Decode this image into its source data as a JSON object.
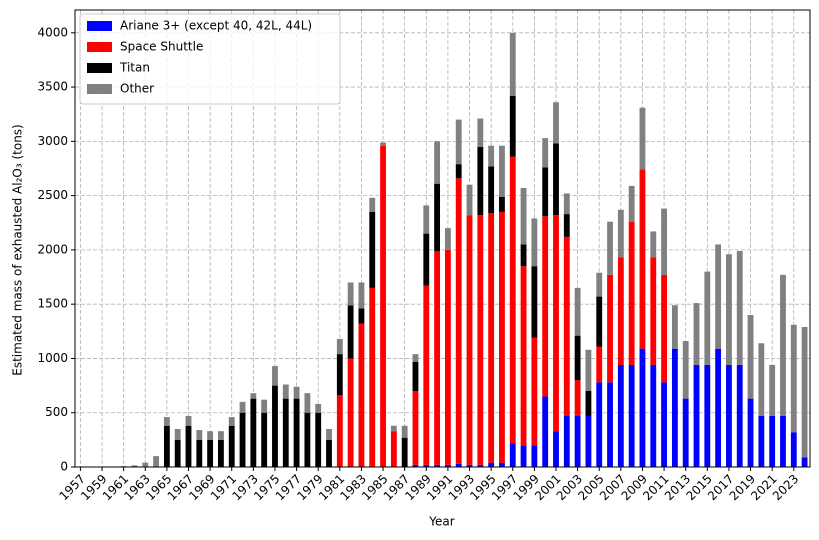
{
  "chart_data": {
    "type": "stacked_bar",
    "y_label": "Estimated mass of exhausted Al₂O₃ (tons)",
    "x_label": "Year",
    "categories": [
      "1957",
      null,
      "1959",
      null,
      "1961",
      null,
      "1963",
      null,
      "1965",
      null,
      "1967",
      null,
      "1969",
      null,
      "1971",
      null,
      "1973",
      null,
      "1975",
      null,
      "1977",
      null,
      "1979",
      null,
      "1981",
      null,
      "1983",
      null,
      "1985",
      null,
      "1987",
      null,
      "1989",
      null,
      "1991",
      null,
      "1993",
      null,
      "1995",
      null,
      "1997",
      null,
      "1999",
      null,
      "2001",
      null,
      "2003",
      null,
      "2005",
      null,
      "2007",
      null,
      "2009",
      null,
      "2011",
      null,
      "2013",
      null,
      "2015",
      null,
      "2017",
      null,
      "2019",
      null,
      "2021",
      null,
      "2023",
      null
    ],
    "series": [
      {
        "name": "Ariane 3+ (except 40, 42L, 44L)",
        "color": "#0000ff",
        "values": [
          0,
          0,
          0,
          0,
          0,
          0,
          0,
          0,
          0,
          0,
          0,
          0,
          0,
          0,
          0,
          0,
          0,
          0,
          0,
          0,
          0,
          0,
          0,
          0,
          0,
          0,
          0,
          0,
          0,
          0,
          0,
          20,
          20,
          20,
          20,
          30,
          20,
          20,
          40,
          40,
          220,
          200,
          200,
          650,
          330,
          470,
          470,
          470,
          780,
          780,
          940,
          940,
          1090,
          940,
          780,
          1090,
          630,
          940,
          940,
          1090,
          940,
          940,
          630,
          470,
          470,
          470,
          320,
          90
        ]
      },
      {
        "name": "Space Shuttle",
        "color": "#ff0000",
        "values": [
          0,
          0,
          0,
          0,
          0,
          0,
          0,
          0,
          0,
          0,
          0,
          0,
          0,
          0,
          0,
          0,
          0,
          0,
          0,
          0,
          0,
          0,
          0,
          0,
          660,
          1000,
          1320,
          1650,
          2960,
          330,
          0,
          680,
          1650,
          1970,
          1980,
          2630,
          2300,
          2300,
          2300,
          2310,
          2640,
          1650,
          990,
          1660,
          1990,
          1650,
          330,
          0,
          330,
          990,
          990,
          1320,
          1650,
          990,
          990,
          0,
          0,
          0,
          0,
          0,
          0,
          0,
          0,
          0,
          0,
          0,
          0,
          0
        ]
      },
      {
        "name": "Titan",
        "color": "#000000",
        "values": [
          0,
          0,
          0,
          0,
          0,
          0,
          0,
          0,
          380,
          250,
          380,
          250,
          250,
          250,
          380,
          500,
          630,
          500,
          750,
          630,
          630,
          500,
          500,
          250,
          380,
          490,
          140,
          700,
          0,
          0,
          270,
          270,
          480,
          620,
          0,
          130,
          0,
          630,
          430,
          140,
          560,
          200,
          660,
          450,
          660,
          210,
          410,
          230,
          460,
          0,
          0,
          0,
          0,
          0,
          0,
          0,
          0,
          0,
          0,
          0,
          0,
          0,
          0,
          0,
          0,
          0,
          0,
          0
        ]
      },
      {
        "name": "Other",
        "color": "#808080",
        "values": [
          0,
          0,
          2,
          5,
          8,
          15,
          40,
          100,
          80,
          100,
          90,
          90,
          80,
          80,
          80,
          100,
          50,
          120,
          180,
          130,
          110,
          180,
          80,
          100,
          140,
          210,
          240,
          130,
          30,
          50,
          110,
          70,
          260,
          390,
          200,
          410,
          280,
          260,
          190,
          470,
          580,
          520,
          440,
          270,
          380,
          190,
          440,
          380,
          220,
          490,
          440,
          330,
          570,
          240,
          610,
          400,
          530,
          570,
          860,
          960,
          1020,
          1050,
          770,
          670,
          470,
          1300,
          990,
          1200
        ]
      }
    ],
    "ylim": [
      0,
      4210
    ],
    "yticks": [
      0,
      500,
      1000,
      1500,
      2000,
      2500,
      3000,
      3500,
      4000
    ],
    "grid": true,
    "legend": "upper left"
  }
}
